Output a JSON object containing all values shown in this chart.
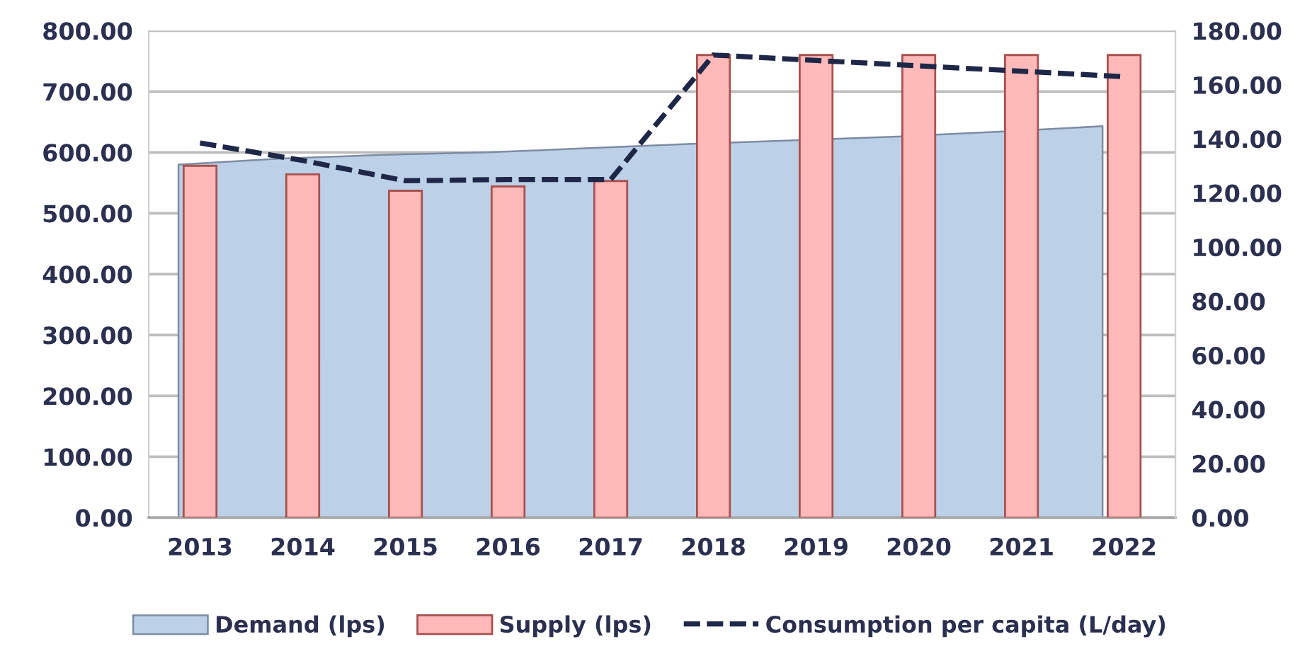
{
  "chart_data": {
    "type": "bar",
    "categories": [
      "2013",
      "2014",
      "2015",
      "2016",
      "2017",
      "2018",
      "2019",
      "2020",
      "2021",
      "2022"
    ],
    "series": [
      {
        "name": "Demand (lps)",
        "type": "area",
        "color": "#bcd0e8",
        "values": [
          580,
          590,
          596,
          600,
          607,
          614,
          620,
          626,
          634,
          643
        ]
      },
      {
        "name": "Supply (lps)",
        "type": "bar",
        "color": "#ffb9b9",
        "values": [
          578,
          564,
          537,
          544,
          553,
          760,
          760,
          760,
          760,
          760
        ]
      },
      {
        "name": "Consumption per capita (L/day)",
        "type": "line",
        "axis": "y2",
        "color": "#1f2748",
        "line_style": "dashed",
        "values": [
          138.5,
          132,
          124.5,
          125,
          125,
          171,
          169,
          167,
          165,
          163
        ]
      }
    ],
    "ylim": [
      0,
      800
    ],
    "yticks": [
      {
        "value": 0,
        "label": "0.00"
      },
      {
        "value": 100,
        "label": "100.00"
      },
      {
        "value": 200,
        "label": "200.00"
      },
      {
        "value": 300,
        "label": "300.00"
      },
      {
        "value": 400,
        "label": "400.00"
      },
      {
        "value": 500,
        "label": "500.00"
      },
      {
        "value": 600,
        "label": "600.00"
      },
      {
        "value": 700,
        "label": "700.00"
      },
      {
        "value": 800,
        "label": "800.00"
      }
    ],
    "y2lim": [
      0,
      180
    ],
    "y2ticks": [
      {
        "value": 0,
        "label": "0.00"
      },
      {
        "value": 20,
        "label": "20.00"
      },
      {
        "value": 40,
        "label": "40.00"
      },
      {
        "value": 60,
        "label": "60.00"
      },
      {
        "value": 80,
        "label": "80.00"
      },
      {
        "value": 100,
        "label": "100.00"
      },
      {
        "value": 120,
        "label": "120.00"
      },
      {
        "value": 140,
        "label": "140.00"
      },
      {
        "value": 160,
        "label": "160.00"
      },
      {
        "value": 180,
        "label": "180.00"
      }
    ],
    "grid": "y",
    "legend": "bottom"
  }
}
